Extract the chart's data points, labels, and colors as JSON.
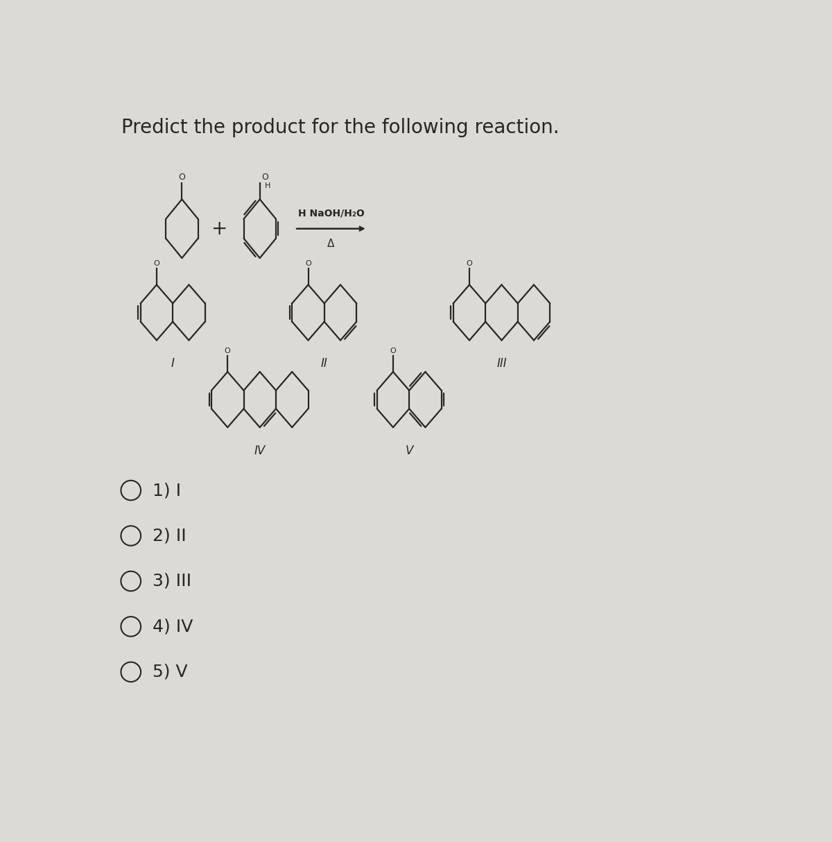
{
  "title": "Predict the product for the following reaction.",
  "bg": "#dcdad7",
  "fg": "#2a2520",
  "title_fs": 20,
  "opt_fs": 18,
  "lw": 1.6,
  "options": [
    "1) I",
    "2) II",
    "3) III",
    "4) IV",
    "5) V"
  ],
  "opt_y": [
    4.85,
    4.0,
    3.15,
    2.3,
    1.45
  ],
  "reaction_label": "NaOH/H₂O",
  "delta": "Δ",
  "H": "H"
}
